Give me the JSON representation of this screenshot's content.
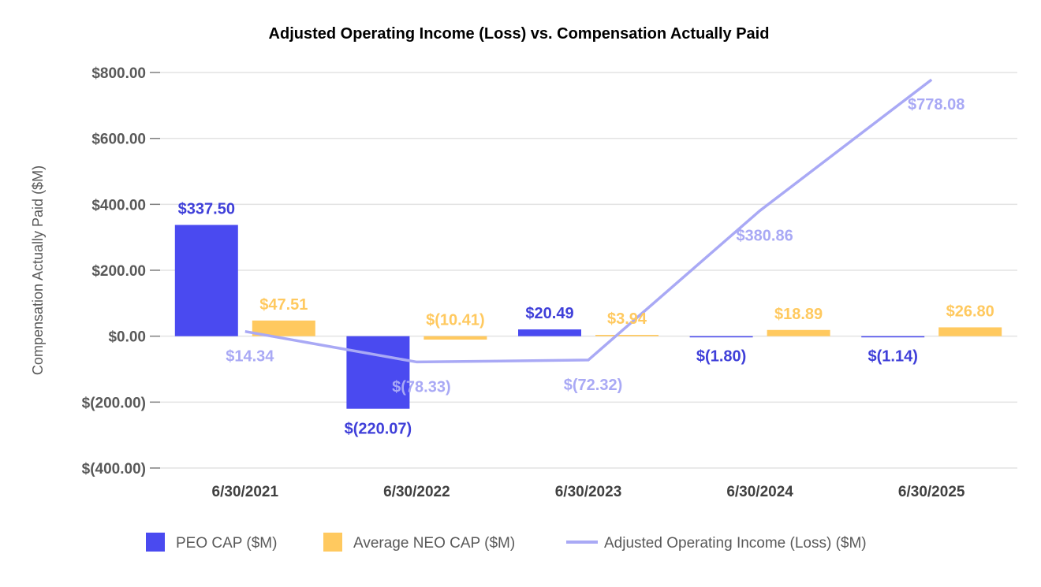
{
  "chart_data": {
    "type": "bar",
    "title": "Adjusted Operating Income (Loss) vs. Compensation Actually Paid",
    "ylabel": "Compensation Actually Paid ($M)",
    "xlabel": "",
    "ylim": [
      -400,
      800
    ],
    "yticks": [
      800,
      600,
      400,
      200,
      0,
      -200,
      -400
    ],
    "ytick_labels": [
      "$800.00",
      "$600.00",
      "$400.00",
      "$200.00",
      "$0.00",
      "$(200.00)",
      "$(400.00)"
    ],
    "grid": true,
    "legend_position": "bottom",
    "categories": [
      "6/30/2021",
      "6/30/2022",
      "6/30/2023",
      "6/30/2024",
      "6/30/2025"
    ],
    "series": [
      {
        "name": "PEO CAP ($M)",
        "kind": "bar",
        "color": "#4A4AF0",
        "values": [
          337.5,
          -220.07,
          20.49,
          -1.8,
          -1.14
        ],
        "labels": [
          "$337.50",
          "$(220.07)",
          "$20.49",
          "$(1.80)",
          "$(1.14)"
        ]
      },
      {
        "name": "Average NEO CAP ($M)",
        "kind": "bar",
        "color": "#FFC95F",
        "values": [
          47.51,
          -10.41,
          3.94,
          18.89,
          26.8
        ],
        "labels": [
          "$47.51",
          "$(10.41)",
          "$3.94",
          "$18.89",
          "$26.80"
        ]
      },
      {
        "name": "Adjusted Operating Income (Loss) ($M)",
        "kind": "line",
        "color": "#A9A9F5",
        "values": [
          14.34,
          -78.33,
          -72.32,
          380.86,
          778.08
        ],
        "labels": [
          "$14.34",
          "$(78.33)",
          "$(72.32)",
          "$380.86",
          "$778.08"
        ]
      }
    ]
  }
}
